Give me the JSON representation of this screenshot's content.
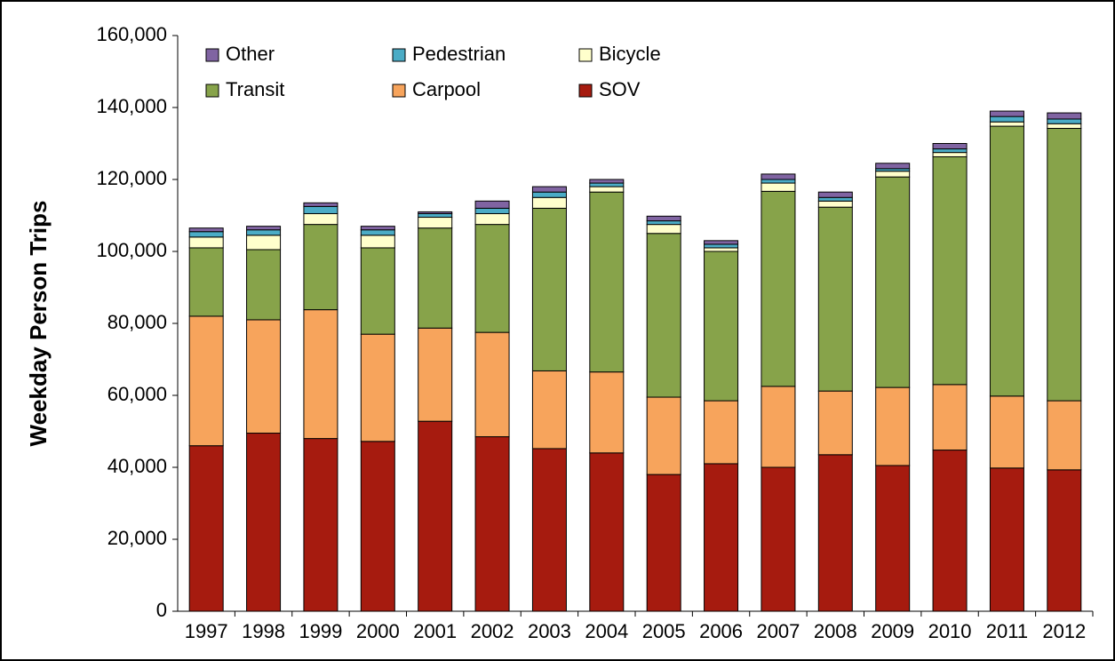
{
  "chart_data": {
    "type": "stacked_bar",
    "y_label": "Weekday Person Trips",
    "categories": [
      "1997",
      "1998",
      "1999",
      "2000",
      "2001",
      "2002",
      "2003",
      "2004",
      "2005",
      "2006",
      "2007",
      "2008",
      "2009",
      "2010",
      "2011",
      "2012"
    ],
    "series": [
      {
        "name": "SOV",
        "color": "#a61b0f",
        "values": [
          46000,
          49500,
          48000,
          47200,
          52800,
          48500,
          45200,
          44000,
          38000,
          41000,
          40000,
          43500,
          40500,
          44800,
          39800,
          39300
        ]
      },
      {
        "name": "Carpool",
        "color": "#f7a45c",
        "values": [
          36000,
          31500,
          35800,
          29800,
          25900,
          29000,
          21600,
          22500,
          21500,
          17500,
          22500,
          17700,
          21700,
          18200,
          20000,
          19200
        ]
      },
      {
        "name": "Transit",
        "color": "#87a34a",
        "values": [
          19000,
          19500,
          23700,
          24000,
          27800,
          30000,
          45200,
          50000,
          45500,
          41500,
          54200,
          51100,
          58500,
          63300,
          75000,
          75700
        ]
      },
      {
        "name": "Bicycle",
        "color": "#ffffcc",
        "values": [
          3000,
          4000,
          3000,
          3500,
          3000,
          3000,
          3000,
          1500,
          2500,
          1000,
          2300,
          1700,
          1600,
          1200,
          1200,
          1300
        ]
      },
      {
        "name": "Pedestrian",
        "color": "#4bacc6",
        "values": [
          1500,
          1500,
          2000,
          1500,
          1000,
          1500,
          1500,
          1000,
          1000,
          1000,
          1000,
          1000,
          700,
          1000,
          1500,
          1300
        ]
      },
      {
        "name": "Other",
        "color": "#8064a2",
        "values": [
          1000,
          1000,
          1000,
          1000,
          500,
          2000,
          1500,
          1000,
          1300,
          1000,
          1500,
          1500,
          1500,
          1500,
          1500,
          1700
        ]
      }
    ],
    "ylim": [
      0,
      160000
    ],
    "yticks": [
      0,
      {
        "value": 20000,
        "label": "20,000"
      },
      {
        "value": 40000,
        "label": "40,000"
      },
      {
        "value": 60000,
        "label": "60,000"
      },
      {
        "value": 80000,
        "label": "80,000"
      },
      {
        "value": 100000,
        "label": "100,000"
      },
      {
        "value": 120000,
        "label": "120,000"
      },
      {
        "value": 140000,
        "label": "140,000"
      },
      {
        "value": 160000,
        "label": "160,000"
      }
    ]
  }
}
